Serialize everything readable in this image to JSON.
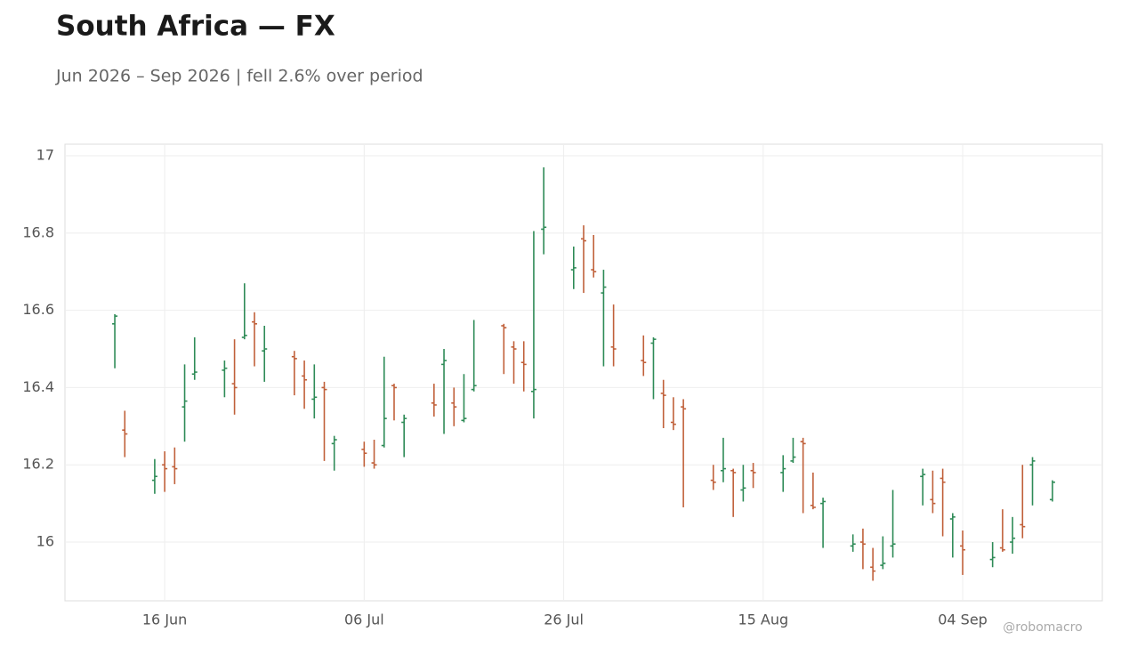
{
  "chart_data": {
    "type": "ohlc",
    "title": "South Africa — FX",
    "subtitle": "Jun 2026 – Sep 2026 | fell 2.6% over period",
    "credit": "@robomacro",
    "x": [
      "2026-06-11",
      "2026-06-12",
      "2026-06-15",
      "2026-06-16",
      "2026-06-17",
      "2026-06-18",
      "2026-06-19",
      "2026-06-22",
      "2026-06-23",
      "2026-06-24",
      "2026-06-25",
      "2026-06-26",
      "2026-06-29",
      "2026-06-30",
      "2026-07-01",
      "2026-07-02",
      "2026-07-03",
      "2026-07-06",
      "2026-07-07",
      "2026-07-08",
      "2026-07-09",
      "2026-07-10",
      "2026-07-13",
      "2026-07-14",
      "2026-07-15",
      "2026-07-16",
      "2026-07-17",
      "2026-07-20",
      "2026-07-21",
      "2026-07-22",
      "2026-07-23",
      "2026-07-24",
      "2026-07-27",
      "2026-07-28",
      "2026-07-29",
      "2026-07-30",
      "2026-07-31",
      "2026-08-03",
      "2026-08-04",
      "2026-08-05",
      "2026-08-06",
      "2026-08-07",
      "2026-08-10",
      "2026-08-11",
      "2026-08-12",
      "2026-08-13",
      "2026-08-14",
      "2026-08-17",
      "2026-08-18",
      "2026-08-19",
      "2026-08-20",
      "2026-08-21",
      "2026-08-24",
      "2026-08-25",
      "2026-08-26",
      "2026-08-27",
      "2026-08-28",
      "2026-08-31",
      "2026-09-01",
      "2026-09-02",
      "2026-09-03",
      "2026-09-04",
      "2026-09-07",
      "2026-09-08",
      "2026-09-09",
      "2026-09-10",
      "2026-09-11",
      "2026-09-13"
    ],
    "open": [
      16.565,
      16.29,
      16.16,
      16.2,
      16.195,
      16.35,
      16.435,
      16.445,
      16.41,
      16.53,
      16.57,
      16.495,
      16.48,
      16.43,
      16.37,
      16.4,
      16.255,
      16.24,
      16.205,
      16.25,
      16.405,
      16.31,
      16.36,
      16.46,
      16.36,
      16.315,
      16.395,
      16.56,
      16.505,
      16.465,
      16.39,
      16.81,
      16.705,
      16.785,
      16.705,
      16.645,
      16.505,
      16.47,
      16.515,
      16.385,
      16.31,
      16.35,
      16.16,
      16.185,
      16.185,
      16.135,
      16.185,
      16.18,
      16.21,
      16.26,
      16.095,
      16.1,
      15.99,
      16.0,
      15.935,
      15.94,
      15.99,
      16.17,
      16.11,
      16.165,
      16.06,
      15.99,
      15.955,
      15.985,
      16.0,
      16.045,
      16.2,
      16.11
    ],
    "high": [
      16.59,
      16.34,
      16.215,
      16.235,
      16.245,
      16.46,
      16.53,
      16.47,
      16.525,
      16.67,
      16.595,
      16.56,
      16.495,
      16.47,
      16.46,
      16.415,
      16.275,
      16.26,
      16.265,
      16.48,
      16.41,
      16.33,
      16.41,
      16.5,
      16.4,
      16.435,
      16.575,
      16.565,
      16.52,
      16.52,
      16.805,
      16.97,
      16.765,
      16.82,
      16.795,
      16.705,
      16.615,
      16.535,
      16.53,
      16.42,
      16.375,
      16.37,
      16.2,
      16.27,
      16.19,
      16.2,
      16.205,
      16.225,
      16.27,
      16.27,
      16.18,
      16.115,
      16.02,
      16.035,
      15.985,
      16.015,
      16.135,
      16.19,
      16.185,
      16.19,
      16.075,
      16.03,
      16.0,
      16.085,
      16.065,
      16.2,
      16.22,
      16.16
    ],
    "low": [
      16.45,
      16.22,
      16.125,
      16.13,
      16.15,
      16.26,
      16.42,
      16.375,
      16.33,
      16.525,
      16.455,
      16.415,
      16.38,
      16.345,
      16.32,
      16.21,
      16.185,
      16.195,
      16.19,
      16.245,
      16.315,
      16.22,
      16.325,
      16.28,
      16.3,
      16.31,
      16.39,
      16.435,
      16.41,
      16.39,
      16.32,
      16.745,
      16.655,
      16.645,
      16.685,
      16.455,
      16.455,
      16.43,
      16.37,
      16.295,
      16.29,
      16.09,
      16.135,
      16.155,
      16.065,
      16.105,
      16.14,
      16.13,
      16.205,
      16.075,
      16.085,
      15.985,
      15.975,
      15.93,
      15.9,
      15.93,
      15.96,
      16.095,
      16.075,
      16.015,
      15.96,
      15.915,
      15.935,
      15.975,
      15.97,
      16.01,
      16.095,
      16.105
    ],
    "close": [
      16.585,
      16.28,
      16.17,
      16.19,
      16.19,
      16.365,
      16.44,
      16.45,
      16.4,
      16.535,
      16.565,
      16.5,
      16.475,
      16.42,
      16.375,
      16.395,
      16.265,
      16.23,
      16.2,
      16.32,
      16.4,
      16.32,
      16.355,
      16.47,
      16.35,
      16.32,
      16.405,
      16.555,
      16.5,
      16.46,
      16.395,
      16.815,
      16.71,
      16.78,
      16.7,
      16.66,
      16.5,
      16.465,
      16.525,
      16.38,
      16.305,
      16.345,
      16.155,
      16.19,
      16.18,
      16.14,
      16.18,
      16.19,
      16.22,
      16.255,
      16.09,
      16.105,
      15.995,
      15.995,
      15.925,
      15.945,
      15.995,
      16.175,
      16.1,
      16.155,
      16.065,
      15.98,
      15.96,
      15.98,
      16.01,
      16.04,
      16.21,
      16.155
    ],
    "up_color": "#2e8b57",
    "down_color": "#c0603a",
    "xlim": [
      "2026-06-06",
      "2026-09-18"
    ],
    "xticks": [
      {
        "value": "2026-06-16",
        "label": "16 Jun"
      },
      {
        "value": "2026-07-06",
        "label": "06 Jul"
      },
      {
        "value": "2026-07-26",
        "label": "26 Jul"
      },
      {
        "value": "2026-08-15",
        "label": "15 Aug"
      },
      {
        "value": "2026-09-04",
        "label": "04 Sep"
      }
    ],
    "ylim": [
      15.848,
      17.03
    ],
    "yticks": [
      16,
      16.2,
      16.4,
      16.6,
      16.8,
      17
    ],
    "grid": true
  }
}
